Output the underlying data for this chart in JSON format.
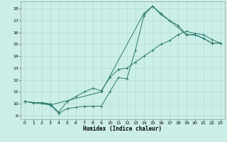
{
  "xlabel": "Humidex (Indice chaleur)",
  "ylabel": "",
  "xlim": [
    -0.5,
    23.5
  ],
  "ylim": [
    8.7,
    18.6
  ],
  "bg_color": "#cceee8",
  "grid_color": "#aad8d0",
  "line_color": "#2a7a6a",
  "line1_x": [
    0,
    1,
    2,
    3,
    4,
    5,
    6,
    7,
    8,
    9,
    10,
    11,
    12,
    13,
    14,
    15,
    16,
    17,
    18,
    19,
    20,
    21,
    22,
    23
  ],
  "line1_y": [
    10.2,
    10.1,
    10.1,
    9.9,
    9.2,
    9.6,
    9.7,
    9.8,
    9.8,
    9.8,
    11.0,
    12.2,
    12.1,
    14.5,
    17.4,
    18.2,
    17.5,
    17.0,
    16.6,
    15.8,
    15.8,
    15.5,
    15.1,
    15.1
  ],
  "line2_x": [
    0,
    1,
    2,
    3,
    4,
    5,
    6,
    7,
    8,
    9,
    10,
    11,
    12,
    13,
    14,
    15,
    16,
    17,
    18,
    19,
    20,
    21,
    22,
    23
  ],
  "line2_y": [
    10.2,
    10.1,
    10.1,
    10.0,
    9.3,
    10.2,
    10.6,
    11.0,
    11.3,
    11.1,
    12.2,
    12.9,
    13.0,
    13.5,
    14.0,
    14.5,
    15.0,
    15.3,
    15.8,
    16.1,
    15.9,
    15.8,
    15.4,
    15.1
  ],
  "line3_x": [
    0,
    3,
    9,
    14,
    15,
    16,
    19,
    20,
    21,
    22,
    23
  ],
  "line3_y": [
    10.2,
    9.9,
    11.0,
    17.6,
    18.2,
    17.6,
    15.8,
    15.8,
    15.5,
    15.1,
    15.1
  ],
  "xticks": [
    0,
    1,
    2,
    3,
    4,
    5,
    6,
    7,
    8,
    9,
    10,
    11,
    12,
    13,
    14,
    15,
    16,
    17,
    18,
    19,
    20,
    21,
    22,
    23
  ],
  "yticks": [
    9,
    10,
    11,
    12,
    13,
    14,
    15,
    16,
    17,
    18
  ],
  "xlabel_fontsize": 5.5,
  "tick_fontsize": 4.5,
  "linewidth": 0.7,
  "markersize": 2.5,
  "markeredgewidth": 0.6
}
